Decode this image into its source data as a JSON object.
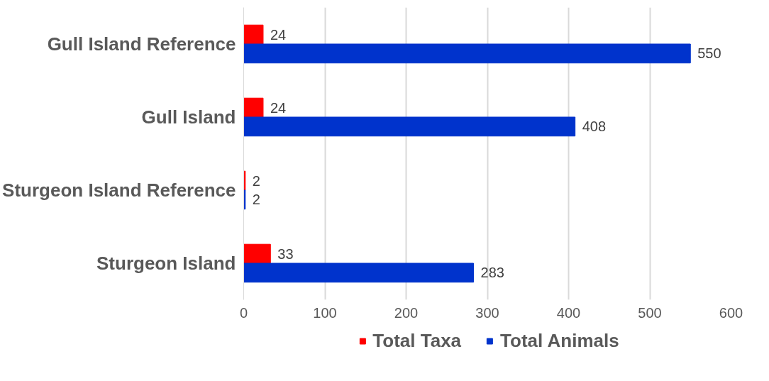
{
  "chart_data": {
    "type": "bar",
    "orientation": "horizontal",
    "categories": [
      "Gull Island Reference",
      "Gull Island",
      "Sturgeon Island Reference",
      "Sturgeon Island"
    ],
    "series": [
      {
        "name": "Total Taxa",
        "color": "#ff0000",
        "values": [
          24,
          24,
          2,
          33
        ]
      },
      {
        "name": "Total Animals",
        "color": "#0033cc",
        "values": [
          550,
          408,
          2,
          283
        ]
      }
    ],
    "xlim": [
      0,
      600
    ],
    "xticks": [
      0,
      100,
      200,
      300,
      400,
      500,
      600
    ],
    "grid": "x",
    "legend": "bottom",
    "data_labels": true
  }
}
